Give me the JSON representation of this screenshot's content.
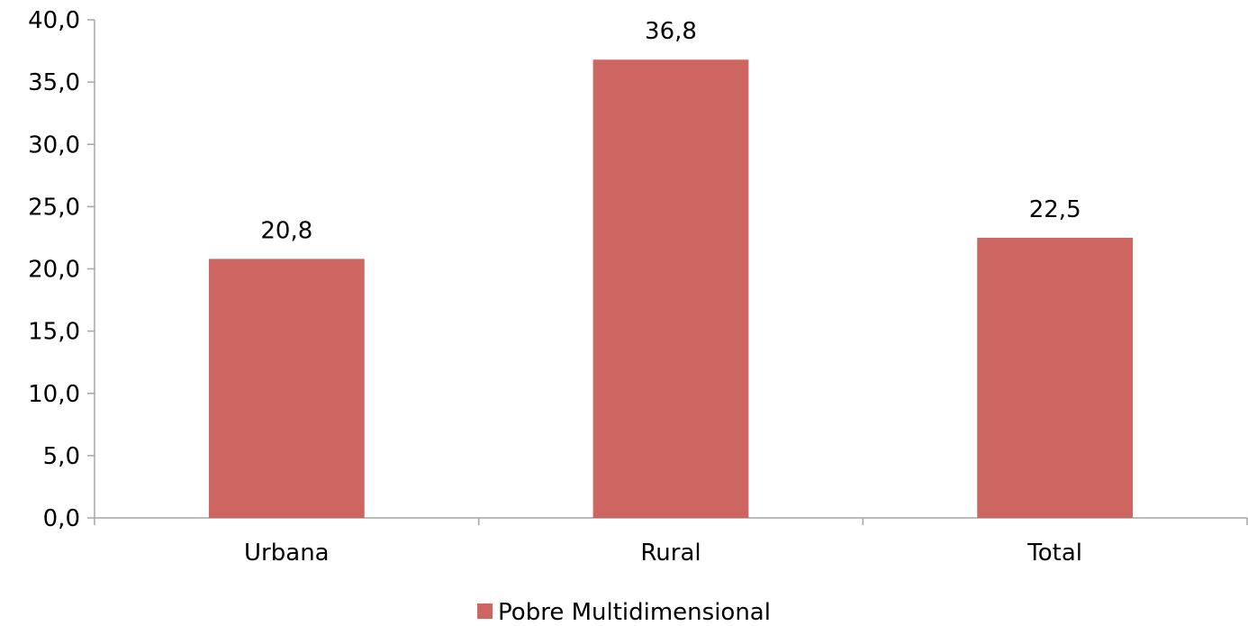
{
  "chart_data": {
    "type": "bar",
    "categories": [
      "Urbana",
      "Rural",
      "Total"
    ],
    "series": [
      {
        "name": "Pobre Multidimensional",
        "values": [
          20.8,
          36.8,
          22.5
        ],
        "value_labels": [
          "20,8",
          "36,8",
          "22,5"
        ],
        "color": "#cd6660"
      }
    ],
    "ylim": [
      0,
      40
    ],
    "yticks": [
      0,
      5,
      10,
      15,
      20,
      25,
      30,
      35,
      40
    ],
    "ytick_labels": [
      "0,0",
      "5,0",
      "10,0",
      "15,0",
      "20,0",
      "25,0",
      "30,0",
      "35,0",
      "40,0"
    ],
    "grid": false,
    "legend_position": "bottom-center",
    "axis_color": "#a6a6a6"
  }
}
